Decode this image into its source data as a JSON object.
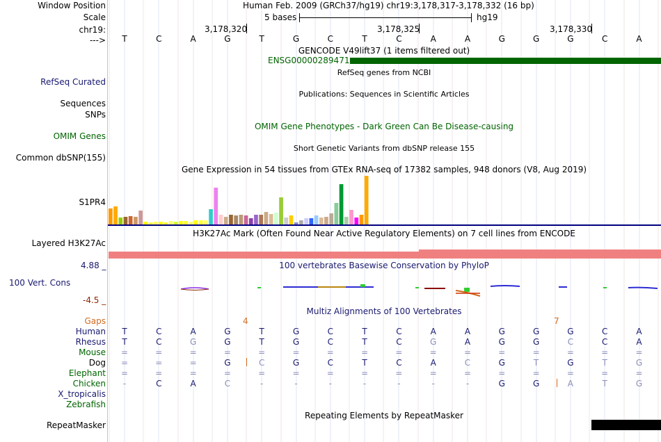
{
  "header": {
    "window_position_label": "Window Position",
    "window_position_text": "Human Feb. 2009 (GRCh37/hg19)   chr19:3,178,317-3,178,332 (16 bp)",
    "scale_label": "Scale",
    "scale_text": "5 bases",
    "assembly": "hg19",
    "chrom_label": "chr19:",
    "strand_label": "--->",
    "positions": [
      "3,178,320",
      "3,178,325",
      "3,178,330"
    ],
    "sequence": [
      "T",
      "C",
      "A",
      "G",
      "T",
      "G",
      "C",
      "T",
      "C",
      "A",
      "A",
      "G",
      "G",
      "G",
      "C",
      "A"
    ]
  },
  "tracks": {
    "gencode": {
      "title": "GENCODE V49lift37 (1 items filtered out)",
      "item_name": "ENSG00000289471",
      "color": "#006400"
    },
    "refseq": {
      "label": "RefSeq Curated",
      "title": "RefSeq genes from NCBI"
    },
    "publications": {
      "label": "Sequences",
      "title": "Publications: Sequences in Scientific Articles"
    },
    "snps": {
      "label": "SNPs"
    },
    "omim": {
      "label": "OMIM Genes",
      "title": "OMIM Gene Phenotypes - Dark Green Can Be Disease-causing",
      "color": "#006400"
    },
    "dbsnp": {
      "label": "Common dbSNP(155)",
      "title": "Short Genetic Variants from dbSNP release 155"
    },
    "gtex": {
      "label": "S1PR4",
      "title": "Gene Expression in 54 tissues from GTEx RNA-seq of 17382 samples, 948 donors (V8, Aug 2019)"
    },
    "h3k27ac": {
      "label": "Layered H3K27Ac",
      "title": "H3K27Ac Mark (Often Found Near Active Regulatory Elements) on 7 cell lines from ENCODE",
      "color": "#f08080"
    },
    "conservation": {
      "label": "100 Vert. Cons",
      "max": "4.88 _",
      "min": "-4.5 _",
      "title": "100 vertebrates Basewise Conservation by PhyloP"
    },
    "multiz": {
      "title": "Multiz Alignments of 100 Vertebrates",
      "gaps_label": "Gaps",
      "gap_counts": [
        "4",
        "7"
      ],
      "species": [
        {
          "name": "Human",
          "bases": [
            "T",
            "C",
            "A",
            "G",
            "T",
            "G",
            "C",
            "T",
            "C",
            "A",
            "A",
            "G",
            "G",
            "G",
            "C",
            "A"
          ]
        },
        {
          "name": "Rhesus",
          "bases": [
            "T",
            "C",
            "G",
            "G",
            "T",
            "G",
            "C",
            "T",
            "C",
            "G",
            "A",
            "G",
            "G",
            "C",
            "C",
            "A"
          ]
        },
        {
          "name": "Mouse",
          "bases": [
            "=",
            "=",
            "=",
            "=",
            "=",
            "=",
            "=",
            "=",
            "=",
            "=",
            "=",
            "=",
            "=",
            "=",
            "=",
            "="
          ]
        },
        {
          "name": "Dog",
          "bases": [
            "=",
            "=",
            "=",
            "G",
            "C",
            "G",
            "C",
            "T",
            "C",
            "A",
            "C",
            "G",
            "T",
            "G",
            "T",
            "G"
          ]
        },
        {
          "name": "Elephant",
          "bases": [
            "=",
            "=",
            "=",
            "=",
            "=",
            "=",
            "=",
            "=",
            "=",
            "=",
            "=",
            "=",
            "=",
            "=",
            "=",
            "="
          ]
        },
        {
          "name": "Chicken",
          "bases": [
            "-",
            "C",
            "A",
            "C",
            "-",
            "-",
            "-",
            "-",
            "-",
            "-",
            "-",
            "G",
            "G",
            "A",
            "T",
            "G"
          ]
        },
        {
          "name": "X_tropicalis",
          "bases": []
        },
        {
          "name": "Zebrafish",
          "bases": []
        }
      ]
    },
    "repeatmasker": {
      "label": "RepeatMasker",
      "title": "Repeating Elements by RepeatMasker"
    }
  },
  "colors": {
    "label_blue": "#191970",
    "label_green": "#006400",
    "gaps_orange": "#d2691e",
    "cons_min": "#8b2500",
    "gtex_line": "#000080"
  }
}
